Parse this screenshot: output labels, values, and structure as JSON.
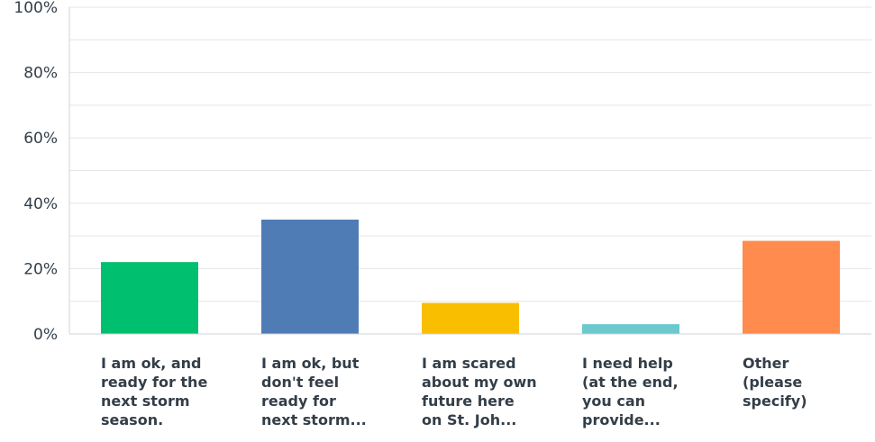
{
  "chart_data": {
    "type": "bar",
    "categories": [
      "I am ok, and\nready for the\nnext storm\nseason.",
      "I am ok, but\ndon't feel\nready for\nnext storm...",
      "I am scared\nabout my own\nfuture here\non St. Joh...",
      "I need help\n(at the end,\nyou can\nprovide...",
      "Other\n(please\nspecify)"
    ],
    "values": [
      22,
      35,
      9.5,
      3,
      28.5
    ],
    "colors": [
      "#00bf6f",
      "#507cb6",
      "#f9be00",
      "#6bc8cd",
      "#ff8b4f"
    ],
    "ylim": [
      0,
      100
    ],
    "yticks": [
      "0%",
      "20%",
      "40%",
      "60%",
      "80%",
      "100%"
    ],
    "grid": true
  }
}
